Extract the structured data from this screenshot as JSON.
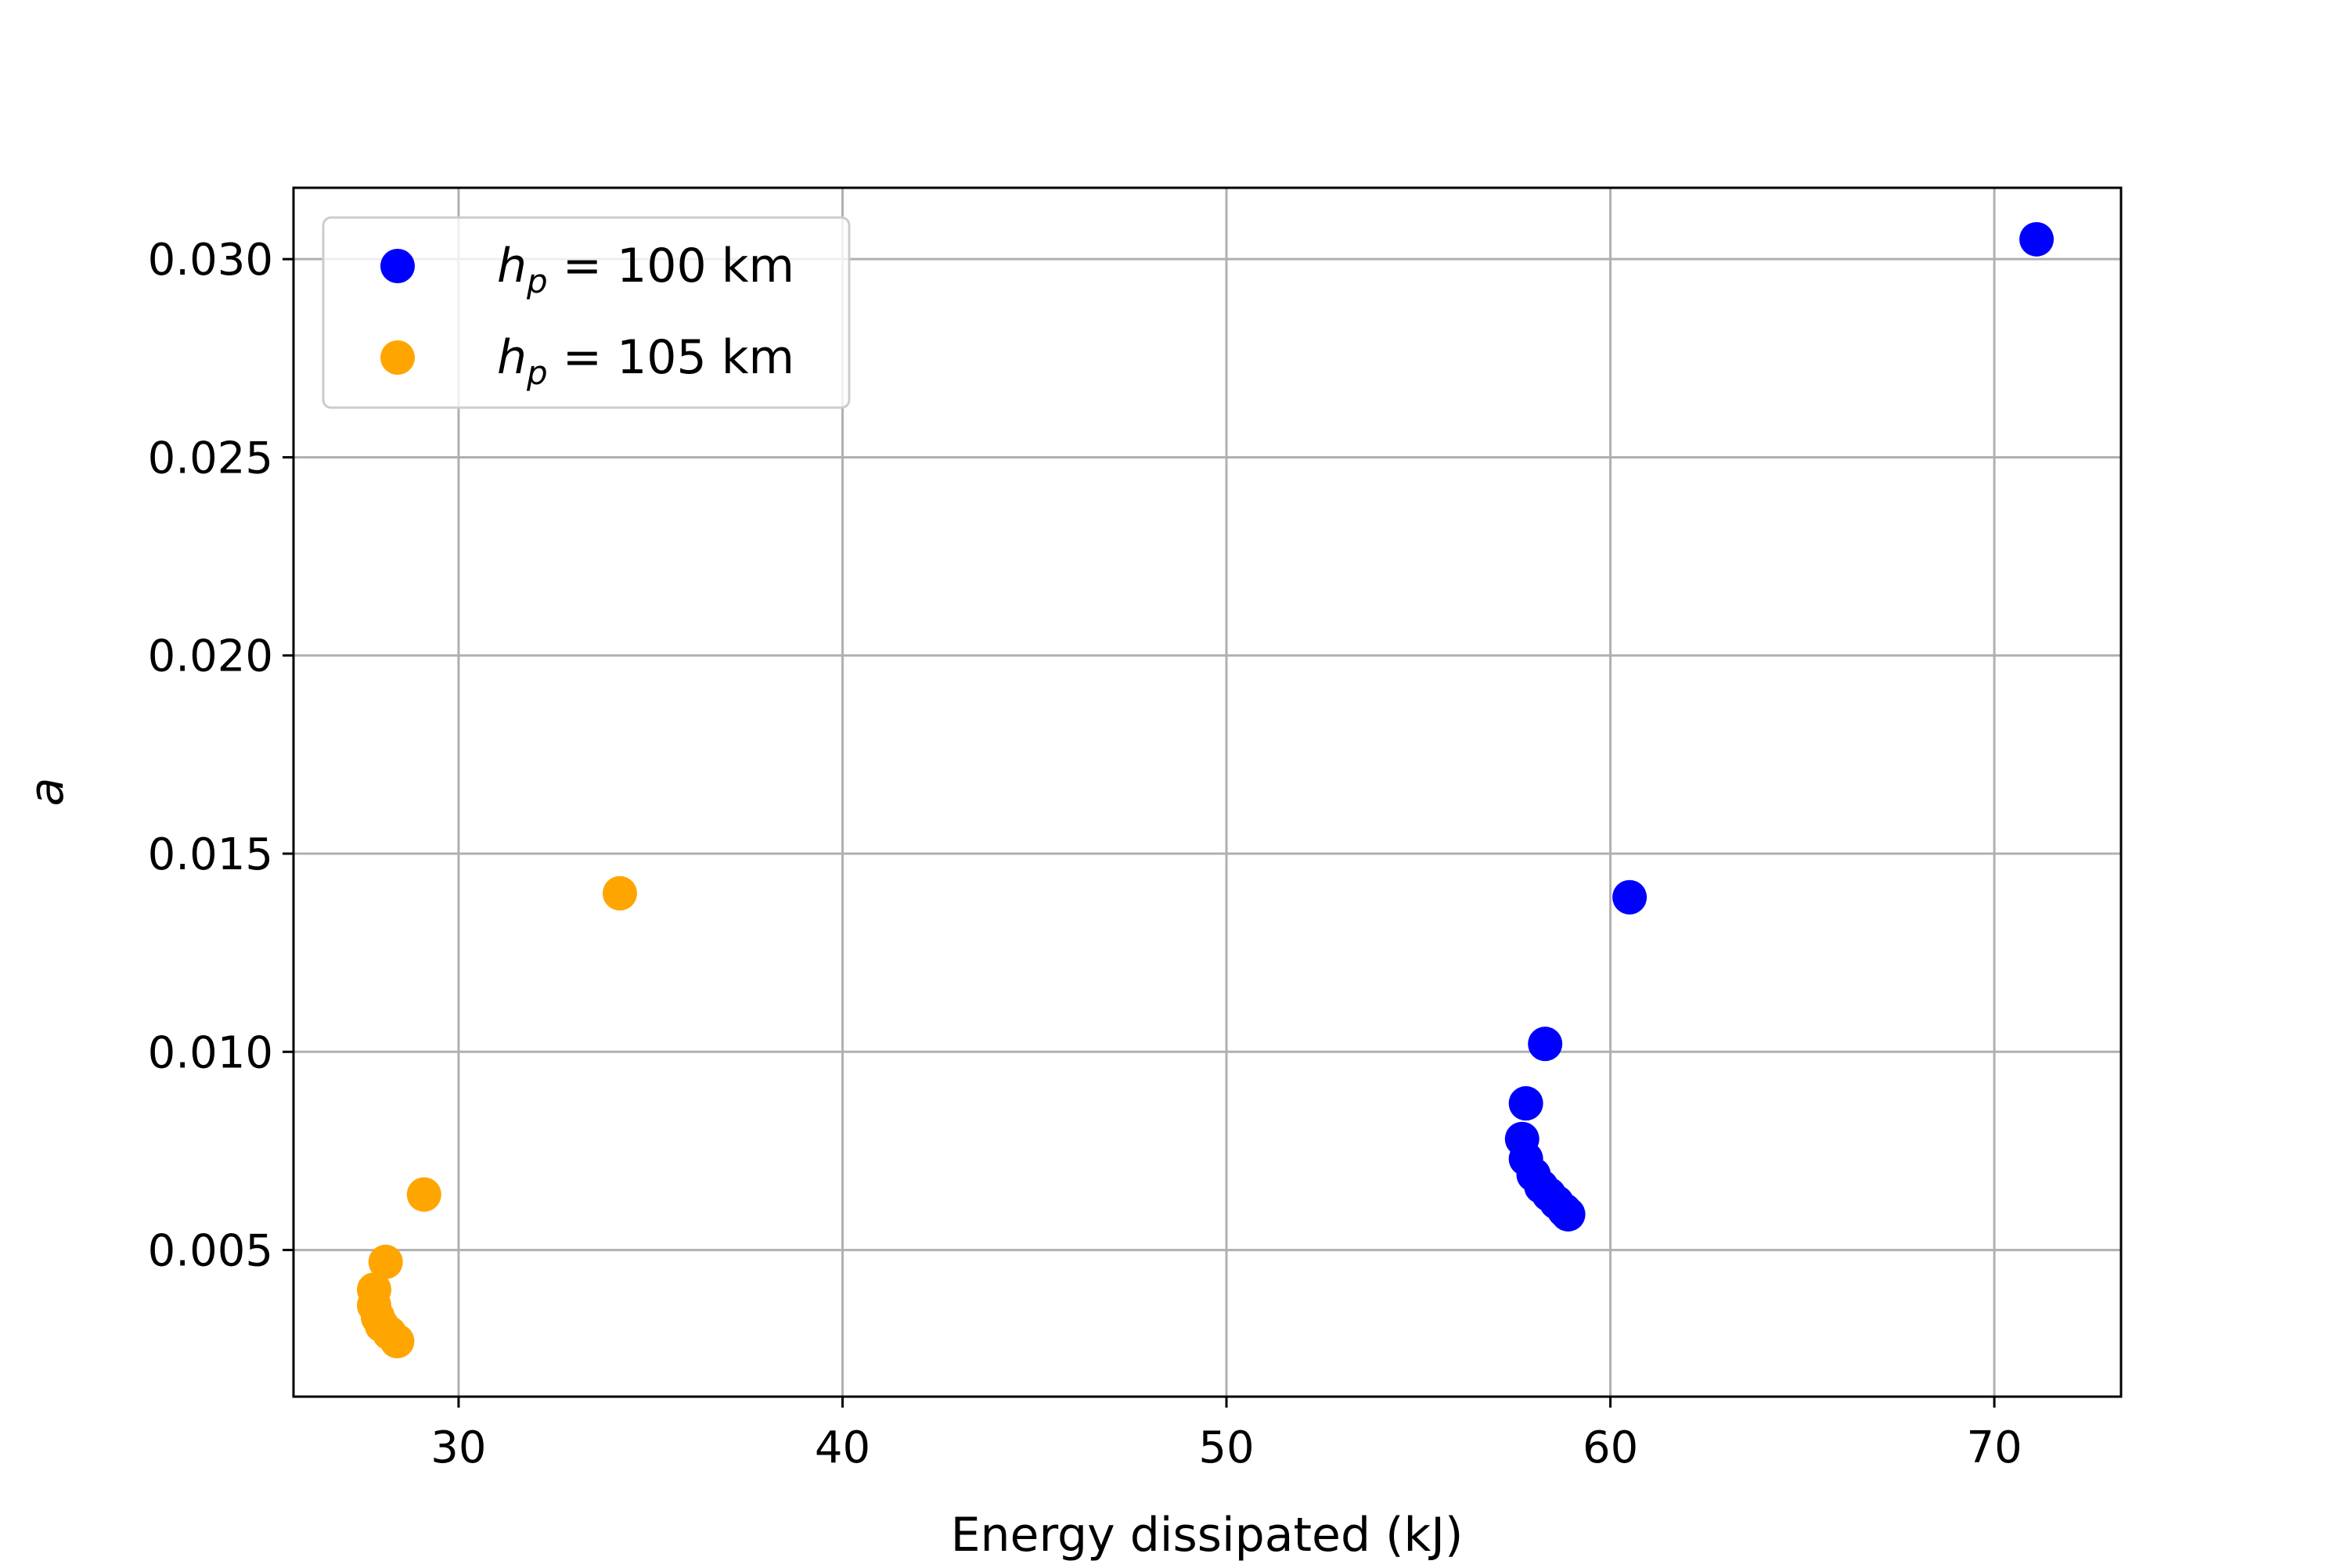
{
  "chart_data": {
    "type": "scatter",
    "title": "",
    "xlabel": "Energy dissipated (kJ)",
    "ylabel": "a",
    "xlim": [
      25.7,
      73.3
    ],
    "ylim": [
      0.0013,
      0.0318
    ],
    "xticks": [
      30,
      40,
      50,
      60,
      70
    ],
    "yticks": [
      0.005,
      0.01,
      0.015,
      0.02,
      0.025,
      0.03
    ],
    "xtick_labels": [
      "30",
      "40",
      "50",
      "60",
      "70"
    ],
    "ytick_labels": [
      "0.005",
      "0.010",
      "0.015",
      "0.020",
      "0.025",
      "0.030"
    ],
    "grid": true,
    "legend_position": "upper-left",
    "series": [
      {
        "name_prefix": "h",
        "name_subscript": "p",
        "name_value": " = 100 km",
        "color": "#0000ff",
        "points": [
          {
            "x": 71.1,
            "y": 0.0305
          },
          {
            "x": 60.5,
            "y": 0.0139
          },
          {
            "x": 58.3,
            "y": 0.0102
          },
          {
            "x": 57.8,
            "y": 0.0087
          },
          {
            "x": 57.7,
            "y": 0.0078
          },
          {
            "x": 57.8,
            "y": 0.0073
          },
          {
            "x": 58.0,
            "y": 0.0069
          },
          {
            "x": 58.2,
            "y": 0.0066
          },
          {
            "x": 58.4,
            "y": 0.0064
          },
          {
            "x": 58.6,
            "y": 0.0062
          },
          {
            "x": 58.8,
            "y": 0.006
          },
          {
            "x": 58.9,
            "y": 0.0059
          }
        ]
      },
      {
        "name_prefix": "h",
        "name_subscript": "p",
        "name_value": " = 105 km",
        "color": "#ffa500",
        "points": [
          {
            "x": 34.2,
            "y": 0.014
          },
          {
            "x": 29.1,
            "y": 0.0064
          },
          {
            "x": 28.1,
            "y": 0.0047
          },
          {
            "x": 27.8,
            "y": 0.004
          },
          {
            "x": 27.8,
            "y": 0.0036
          },
          {
            "x": 27.9,
            "y": 0.0033
          },
          {
            "x": 28.0,
            "y": 0.0031
          },
          {
            "x": 28.2,
            "y": 0.0029
          },
          {
            "x": 28.4,
            "y": 0.0027
          }
        ]
      }
    ]
  }
}
